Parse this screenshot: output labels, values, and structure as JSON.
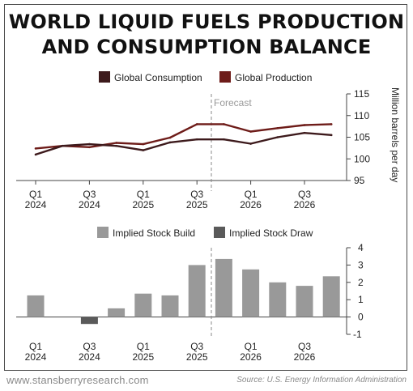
{
  "title_line1": "WORLD LIQUID FUELS PRODUCTION",
  "title_line2": "AND CONSUMPTION BALANCE",
  "footer": {
    "website": "www.stansberryresearch.com",
    "source": "Source: U.S. Energy Information Administration"
  },
  "colors": {
    "consumption": "#3d1a1c",
    "production": "#6e1c19",
    "stock_build": "#999999",
    "stock_draw": "#5a5a5a"
  },
  "chart_data": [
    {
      "type": "line",
      "legend": [
        "Global Consumption",
        "Global Production"
      ],
      "ylabel": "Million barrels per day",
      "ylim": [
        95,
        115
      ],
      "yticks": [
        "95",
        "100",
        "105",
        "110",
        "115"
      ],
      "annotation": "Forecast",
      "xtick_labels": [
        [
          "Q1",
          "2024"
        ],
        [
          "Q3",
          "2024"
        ],
        [
          "Q1",
          "2025"
        ],
        [
          "Q3",
          "2025"
        ],
        [
          "Q1",
          "2026"
        ],
        [
          "Q3",
          "2026"
        ]
      ],
      "x": [
        "Q1 2024",
        "Q2 2024",
        "Q3 2024",
        "Q4 2024",
        "Q1 2025",
        "Q2 2025",
        "Q3 2025",
        "Q4 2025",
        "Q1 2026",
        "Q2 2026",
        "Q3 2026",
        "Q4 2026"
      ],
      "series": [
        {
          "name": "Global Consumption",
          "values": [
            101.0,
            103.0,
            103.4,
            103.0,
            102.0,
            103.8,
            104.5,
            104.5,
            103.5,
            105.0,
            106.0,
            105.5
          ]
        },
        {
          "name": "Global Production",
          "values": [
            102.4,
            103.0,
            102.7,
            103.7,
            103.4,
            104.9,
            108.0,
            108.0,
            106.3,
            107.1,
            107.8,
            108.0
          ]
        }
      ]
    },
    {
      "type": "bar",
      "legend": [
        "Implied Stock Build",
        "Implied Stock Draw"
      ],
      "ylim": [
        -1,
        4
      ],
      "yticks": [
        "-1",
        "0",
        "1",
        "2",
        "3",
        "4"
      ],
      "xtick_labels": [
        [
          "Q1",
          "2024"
        ],
        [
          "Q3",
          "2024"
        ],
        [
          "Q1",
          "2025"
        ],
        [
          "Q3",
          "2025"
        ],
        [
          "Q1",
          "2026"
        ],
        [
          "Q3",
          "2026"
        ]
      ],
      "categories": [
        "Q1 2024",
        "Q2 2024",
        "Q3 2024",
        "Q4 2024",
        "Q1 2025",
        "Q2 2025",
        "Q3 2025",
        "Q4 2025",
        "Q1 2026",
        "Q2 2026",
        "Q3 2026",
        "Q4 2026"
      ],
      "values": [
        1.25,
        0.0,
        -0.4,
        0.5,
        1.35,
        1.25,
        3.0,
        3.35,
        2.75,
        2.0,
        1.8,
        2.35
      ]
    }
  ]
}
